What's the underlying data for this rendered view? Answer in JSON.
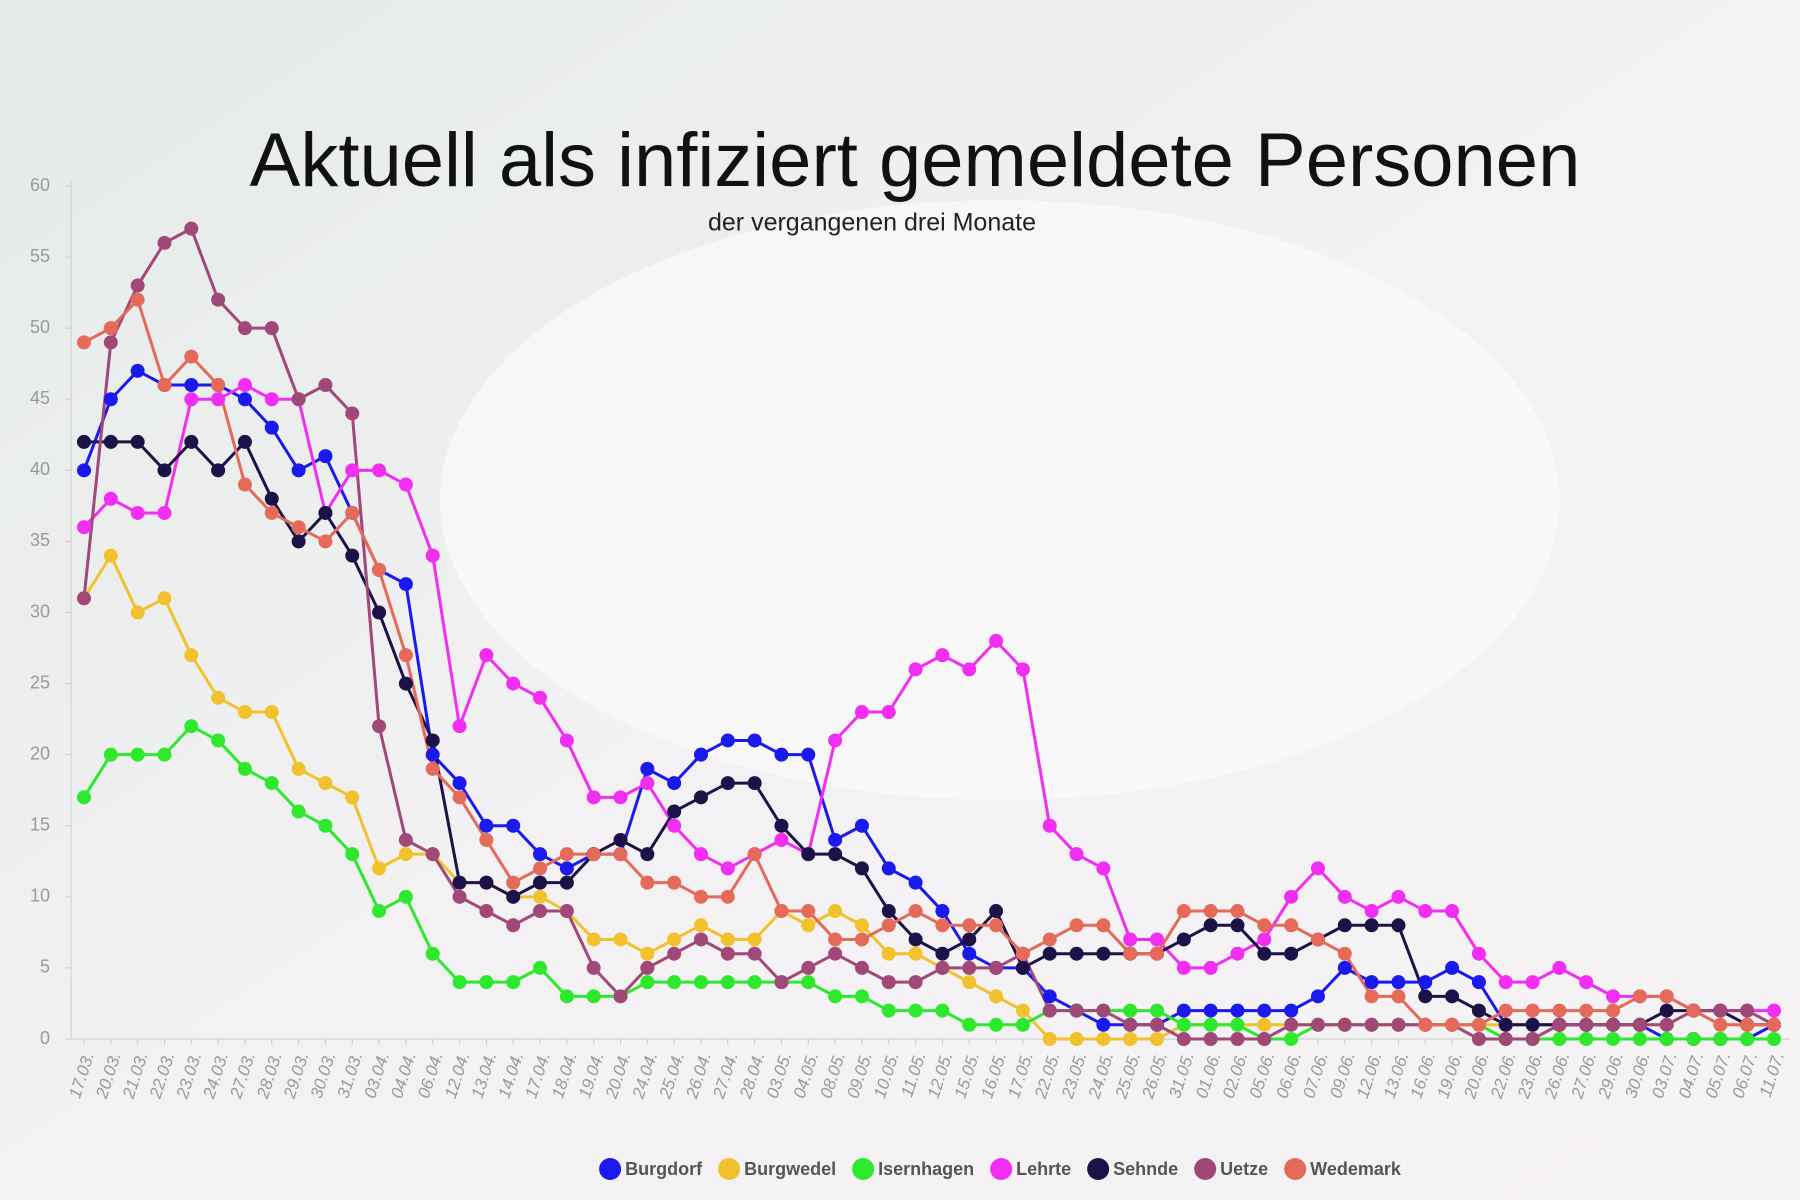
{
  "chart_data": {
    "type": "line",
    "title": "Aktuell als infiziert gemeldete Personen",
    "subtitle": "der vergangenen drei Monate",
    "categories": [
      "17.03.",
      "20.03.",
      "21.03.",
      "22.03.",
      "23.03.",
      "24.03.",
      "27.03.",
      "28.03.",
      "29.03.",
      "30.03.",
      "31.03.",
      "03.04.",
      "04.04.",
      "06.04.",
      "12.04.",
      "13.04.",
      "14.04.",
      "17.04.",
      "18.04.",
      "19.04.",
      "20.04.",
      "24.04.",
      "25.04.",
      "26.04.",
      "27.04.",
      "28.04.",
      "03.05.",
      "04.05.",
      "08.05.",
      "09.05.",
      "10.05.",
      "11.05.",
      "12.05.",
      "15.05.",
      "16.05.",
      "17.05.",
      "22.05.",
      "23.05.",
      "24.05.",
      "25.05.",
      "26.05.",
      "31.05.",
      "01.06.",
      "02.06.",
      "05.06.",
      "06.06.",
      "07.06.",
      "09.06.",
      "12.06.",
      "13.06.",
      "16.06.",
      "19.06.",
      "20.06.",
      "22.06.",
      "23.06.",
      "26.06.",
      "27.06.",
      "29.06.",
      "30.06.",
      "03.07.",
      "04.07.",
      "05.07.",
      "06.07.",
      "11.07."
    ],
    "series": [
      {
        "name": "Burgdorf",
        "color": "#1a1aee",
        "values": [
          40,
          45,
          47,
          46,
          46,
          46,
          45,
          43,
          40,
          41,
          37,
          33,
          32,
          20,
          18,
          15,
          15,
          13,
          12,
          13,
          13,
          19,
          18,
          20,
          21,
          21,
          20,
          20,
          14,
          15,
          12,
          11,
          9,
          6,
          5,
          5,
          3,
          2,
          1,
          1,
          1,
          2,
          2,
          2,
          2,
          2,
          3,
          5,
          4,
          4,
          4,
          5,
          4,
          1,
          1,
          1,
          1,
          1,
          1,
          0,
          0,
          0,
          0,
          1
        ]
      },
      {
        "name": "Burgwedel",
        "color": "#f2c12e",
        "values": [
          31,
          34,
          30,
          31,
          27,
          24,
          23,
          23,
          19,
          18,
          17,
          12,
          13,
          13,
          11,
          11,
          10,
          10,
          9,
          7,
          7,
          6,
          7,
          8,
          7,
          7,
          9,
          8,
          9,
          8,
          6,
          6,
          5,
          4,
          3,
          2,
          0,
          0,
          0,
          0,
          0,
          1,
          1,
          1,
          1,
          1,
          1,
          1,
          1,
          1,
          1,
          1,
          1,
          1,
          1,
          1,
          1,
          1,
          1,
          1,
          2,
          1,
          1,
          1
        ]
      },
      {
        "name": "Isernhagen",
        "color": "#2ee82e",
        "values": [
          17,
          20,
          20,
          20,
          22,
          21,
          19,
          18,
          16,
          15,
          13,
          9,
          10,
          6,
          4,
          4,
          4,
          5,
          3,
          3,
          3,
          4,
          4,
          4,
          4,
          4,
          4,
          4,
          3,
          3,
          2,
          2,
          2,
          1,
          1,
          1,
          2,
          2,
          2,
          2,
          2,
          1,
          1,
          1,
          0,
          0,
          1,
          1,
          1,
          1,
          1,
          1,
          1,
          0,
          0,
          0,
          0,
          0,
          0,
          0,
          0,
          0,
          0,
          0
        ]
      },
      {
        "name": "Lehrte",
        "color": "#f22ef2",
        "values": [
          36,
          38,
          37,
          37,
          45,
          45,
          46,
          45,
          45,
          37,
          40,
          40,
          39,
          34,
          22,
          27,
          25,
          24,
          21,
          17,
          17,
          18,
          15,
          13,
          12,
          13,
          14,
          13,
          21,
          23,
          23,
          26,
          27,
          26,
          28,
          26,
          15,
          13,
          12,
          7,
          7,
          5,
          5,
          6,
          7,
          10,
          12,
          10,
          9,
          10,
          9,
          9,
          6,
          4,
          4,
          5,
          4,
          3,
          3,
          3,
          2,
          2,
          2,
          2
        ]
      },
      {
        "name": "Sehnde",
        "color": "#1c1247",
        "values": [
          42,
          42,
          42,
          40,
          42,
          40,
          42,
          38,
          35,
          37,
          34,
          30,
          25,
          21,
          11,
          11,
          10,
          11,
          11,
          13,
          14,
          13,
          16,
          17,
          18,
          18,
          15,
          13,
          13,
          12,
          9,
          7,
          6,
          7,
          9,
          5,
          6,
          6,
          6,
          6,
          6,
          7,
          8,
          8,
          6,
          6,
          7,
          8,
          8,
          8,
          3,
          3,
          2,
          1,
          1,
          1,
          1,
          1,
          1,
          2,
          2,
          2,
          1,
          1
        ]
      },
      {
        "name": "Uetze",
        "color": "#a04878",
        "values": [
          31,
          49,
          53,
          56,
          57,
          52,
          50,
          50,
          45,
          46,
          44,
          22,
          14,
          13,
          10,
          9,
          8,
          9,
          9,
          5,
          3,
          5,
          6,
          7,
          6,
          6,
          4,
          5,
          6,
          5,
          4,
          4,
          5,
          5,
          5,
          6,
          2,
          2,
          2,
          1,
          1,
          0,
          0,
          0,
          0,
          1,
          1,
          1,
          1,
          1,
          1,
          1,
          0,
          0,
          0,
          1,
          1,
          1,
          1,
          1,
          2,
          2,
          2,
          1
        ]
      },
      {
        "name": "Wedemark",
        "color": "#e56a5a",
        "values": [
          49,
          50,
          52,
          46,
          48,
          46,
          39,
          37,
          36,
          35,
          37,
          33,
          27,
          19,
          17,
          14,
          11,
          12,
          13,
          13,
          13,
          11,
          11,
          10,
          10,
          13,
          9,
          9,
          7,
          7,
          8,
          9,
          8,
          8,
          8,
          6,
          7,
          8,
          8,
          6,
          6,
          9,
          9,
          9,
          8,
          8,
          7,
          6,
          3,
          3,
          1,
          1,
          1,
          2,
          2,
          2,
          2,
          2,
          3,
          3,
          2,
          1,
          1,
          1
        ]
      }
    ],
    "ylim": [
      0,
      60
    ],
    "yticks": [
      0,
      5,
      10,
      15,
      20,
      25,
      30,
      35,
      40,
      45,
      50,
      55,
      60
    ],
    "grid": false
  }
}
